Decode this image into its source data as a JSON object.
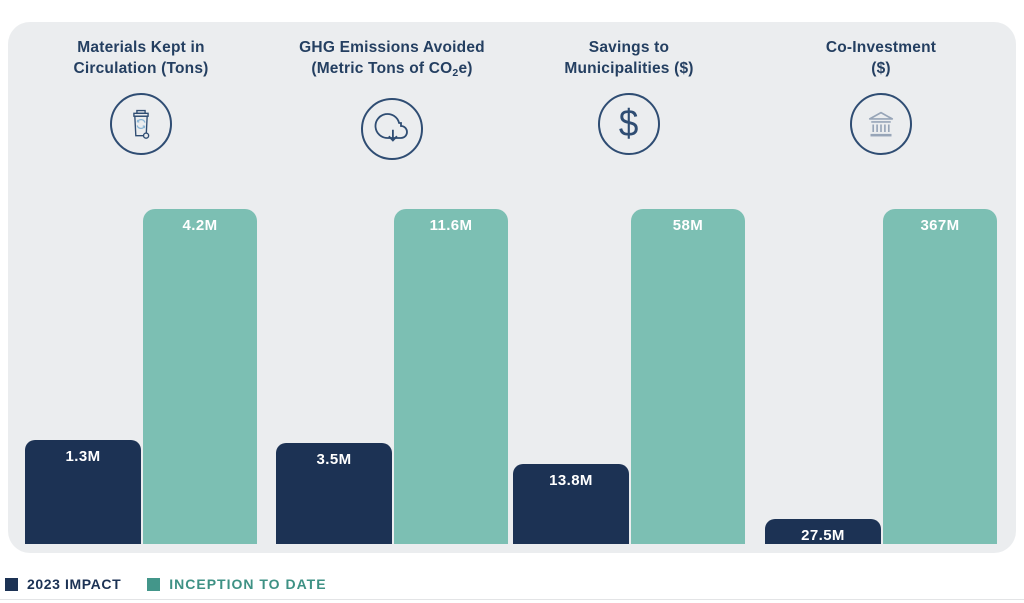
{
  "chart_data": {
    "type": "bar",
    "title": "",
    "categories": [
      "Materials Kept in Circulation (Tons)",
      "GHG Emissions Avoided (Metric Tons of CO2e)",
      "Savings to Municipalities ($)",
      "Co-Investment ($)"
    ],
    "series": [
      {
        "name": "2023 IMPACT",
        "color": "#1c3254",
        "labels": [
          "1.3M",
          "3.5M",
          "13.8M",
          "27.5M"
        ],
        "values": [
          1300000,
          3500000,
          13800000,
          27500000
        ]
      },
      {
        "name": "INCEPTION TO DATE",
        "color": "#7cbfb3",
        "labels": [
          "4.2M",
          "11.6M",
          "58M",
          "367M"
        ],
        "values": [
          4200000,
          11600000,
          58000000,
          367000000
        ]
      }
    ],
    "value_labels_on_bars": true,
    "scaling": "per-category: inception-to-date bar drawn at full column height, 2023 bar proportional to it",
    "grid": false,
    "legend_position": "bottom-left"
  },
  "groups": [
    {
      "title_line1": "Materials Kept in",
      "title_line2": "Circulation (Tons)",
      "icon": "recycling-bin-icon"
    },
    {
      "title_line1": "GHG Emissions Avoided",
      "title_line2_pre": "(Metric Tons of CO",
      "title_line2_sub": "2",
      "title_line2_post": "e)",
      "icon": "cloud-download-icon"
    },
    {
      "title_line1": "Savings to",
      "title_line2": "Municipalities ($)",
      "icon": "dollar-sign-icon"
    },
    {
      "title_line1": "Co-Investment",
      "title_line2": "($)",
      "icon": "bank-icon"
    }
  ],
  "legend": {
    "items": [
      {
        "label": "2023 IMPACT",
        "color": "#1c3254"
      },
      {
        "label": "INCEPTION TO DATE",
        "color": "#43968a"
      }
    ]
  },
  "icons": {
    "dollar_glyph": "$"
  },
  "colors": {
    "panel_bg": "#ebedef",
    "navy": "#1c3254",
    "teal_bar": "#7cbfb3",
    "legend_teal_swatch": "#43968a",
    "legend_teal_text": "#3e9184",
    "title_navy": "#243f61",
    "icon_stroke": "#2f4d73",
    "bank_icon_stroke": "#97a5b8",
    "recycle_arrow_accent": "#8ab6d6"
  }
}
